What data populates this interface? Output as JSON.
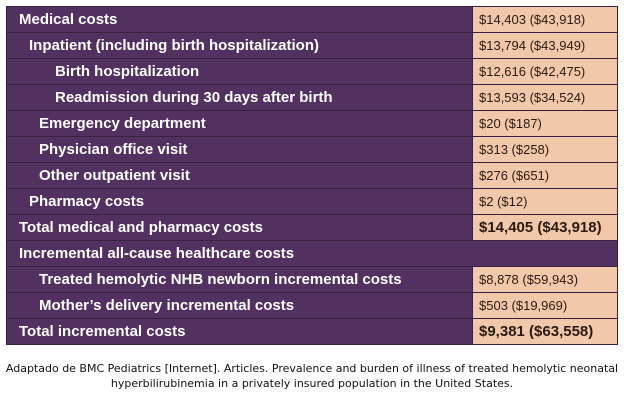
{
  "rows": [
    {
      "label": "Medical costs",
      "value": "$14,403 ($43,918)"
    },
    {
      "label": "Inpatient (including birth hospitalization)",
      "value": "$13,794 ($43,949)"
    },
    {
      "label": "Birth hospitalization",
      "value": "$12,616 ($42,475)"
    },
    {
      "label": "Readmission during 30 days after birth",
      "value": "$13,593 ($34,524)"
    },
    {
      "label": "Emergency department",
      "value": "$20 ($187)"
    },
    {
      "label": "Physician office visit",
      "value": "$313 ($258)"
    },
    {
      "label": "Other outpatient visit",
      "value": "$276 ($651)"
    },
    {
      "label": "Pharmacy costs",
      "value": "$2 ($12)"
    },
    {
      "label": "Total medical and pharmacy costs",
      "value": "$14,405 ($43,918)"
    },
    {
      "label": "Incremental all-cause healthcare costs"
    },
    {
      "label": "Treated hemolytic NHB newborn incremental costs",
      "value": "$8,878 ($59,943)"
    },
    {
      "label": "Mother’s delivery incremental costs",
      "value": "$503 ($19,969)"
    },
    {
      "label": "Total incremental costs",
      "value": "$9,381 ($63,558)"
    }
  ],
  "caption": {
    "line1": "Adaptado de BMC Pediatrics [Internet]. Articles. Prevalence and burden of illness of treated hemolytic neonatal",
    "line2": "hyperbilirubinemia in a privately insured population in the United States."
  },
  "colors": {
    "label_background": "#52305f",
    "value_background": "#f1c8aa",
    "border": "#3a2140"
  }
}
